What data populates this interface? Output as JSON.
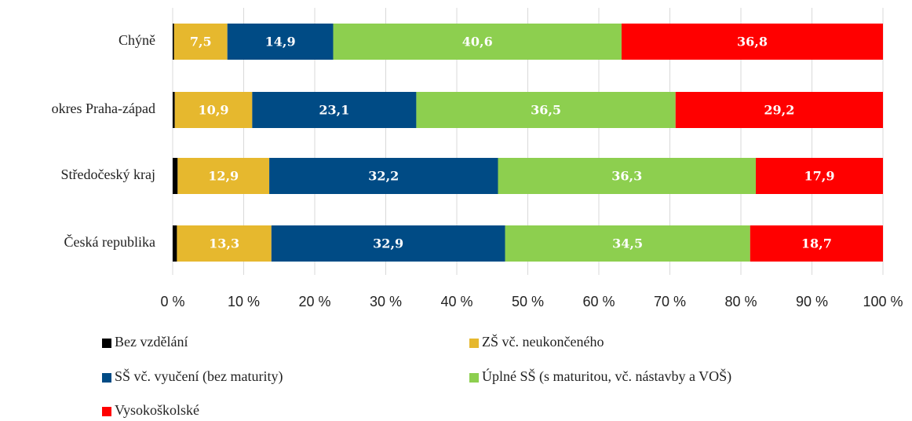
{
  "chart_data": {
    "type": "stacked_barh",
    "categories": [
      "Chýně",
      "okres Praha-západ",
      "Středočeský kraj",
      "Česká republika"
    ],
    "series": [
      {
        "name": "Bez vzdělání",
        "color": "#000000",
        "values": [
          0.2,
          0.3,
          0.7,
          0.6
        ]
      },
      {
        "name": "ZŠ vč. neukončeného",
        "color": "#e6b82e",
        "values": [
          7.5,
          10.9,
          12.9,
          13.3
        ],
        "value_labels": [
          "7,5",
          "10,9",
          "12,9",
          "13,3"
        ]
      },
      {
        "name": "SŠ vč. vyučení (bez maturity)",
        "color": "#004b85",
        "values": [
          14.9,
          23.1,
          32.2,
          32.9
        ],
        "value_labels": [
          "14,9",
          "23,1",
          "32,2",
          "32,9"
        ]
      },
      {
        "name": "Úplné SŠ (s maturitou, vč. nástavby a VOŠ)",
        "color": "#8dcf4f",
        "values": [
          40.6,
          36.5,
          36.3,
          34.5
        ],
        "value_labels": [
          "40,6",
          "36,5",
          "36,3",
          "34,5"
        ]
      },
      {
        "name": "Vysokoškolské",
        "color": "#ff0000",
        "values": [
          36.8,
          29.2,
          17.9,
          18.7
        ],
        "value_labels": [
          "36,8",
          "29,2",
          "17,9",
          "18,7"
        ]
      }
    ],
    "xlim": [
      0,
      100
    ],
    "xticks": [
      {
        "value": 0,
        "label": "0 %"
      },
      {
        "value": 10,
        "label": "10 %"
      },
      {
        "value": 20,
        "label": "20 %"
      },
      {
        "value": 30,
        "label": "30 %"
      },
      {
        "value": 40,
        "label": "40 %"
      },
      {
        "value": 50,
        "label": "50 %"
      },
      {
        "value": 60,
        "label": "60 %"
      },
      {
        "value": 70,
        "label": "70 %"
      },
      {
        "value": 80,
        "label": "80 %"
      },
      {
        "value": 90,
        "label": "90 %"
      },
      {
        "value": 100,
        "label": "100 %"
      }
    ],
    "grid": true
  }
}
